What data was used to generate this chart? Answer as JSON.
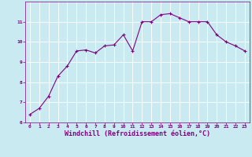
{
  "x": [
    0,
    1,
    2,
    3,
    4,
    5,
    6,
    7,
    8,
    9,
    10,
    11,
    12,
    13,
    14,
    15,
    16,
    17,
    18,
    19,
    20,
    21,
    22,
    23
  ],
  "y": [
    6.4,
    6.7,
    7.3,
    8.3,
    8.8,
    9.55,
    9.6,
    9.45,
    9.8,
    9.85,
    10.35,
    9.55,
    11.0,
    11.0,
    11.35,
    11.4,
    11.2,
    11.0,
    11.0,
    11.0,
    10.35,
    10.0,
    9.8,
    9.55
  ],
  "line_color": "#800080",
  "marker": "+",
  "marker_color": "#800080",
  "background_color": "#c8eaf0",
  "grid_color": "#ffffff",
  "xlabel": "Windchill (Refroidissement éolien,°C)",
  "ylabel": "",
  "ylim": [
    6,
    12
  ],
  "xlim_min": -0.5,
  "xlim_max": 23.5,
  "yticks": [
    6,
    7,
    8,
    9,
    10,
    11
  ],
  "xticks": [
    0,
    1,
    2,
    3,
    4,
    5,
    6,
    7,
    8,
    9,
    10,
    11,
    12,
    13,
    14,
    15,
    16,
    17,
    18,
    19,
    20,
    21,
    22,
    23
  ],
  "tick_color": "#800080",
  "tick_fontsize": 4.5,
  "xlabel_fontsize": 6.0,
  "xlabel_color": "#800080",
  "line_width": 0.8,
  "marker_size": 3.5
}
